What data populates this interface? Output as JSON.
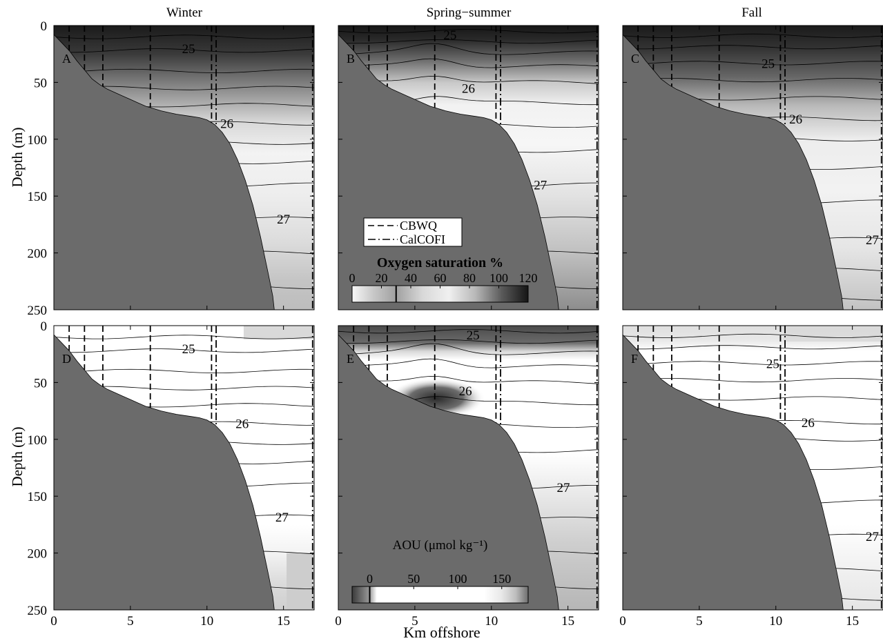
{
  "figure": {
    "column_titles": [
      "Winter",
      "Spring−summer",
      "Fall"
    ],
    "xlabel": "Km offshore",
    "ylabel": "Depth (m)"
  },
  "legend": {
    "entries": [
      {
        "label": "CBWQ",
        "style": "dashed"
      },
      {
        "label": "CalCOFI",
        "style": "dash-dot"
      }
    ]
  },
  "colorbars": {
    "oxygen": {
      "title": "Oxygen saturation %",
      "ticks": [
        "0",
        "20",
        "40",
        "60",
        "80",
        "100",
        "120"
      ],
      "range": [
        0,
        120
      ],
      "marker": 30
    },
    "aou": {
      "title": "AOU (μmol kg⁻¹)",
      "ticks": [
        "0",
        "50",
        "100",
        "150"
      ],
      "range": [
        -20,
        180
      ],
      "marker": 0
    }
  },
  "colors": {
    "seafloor": "#6b6b6b",
    "background": "#ffffff",
    "lines": "#000000"
  },
  "chart_data": [
    {
      "type": "heatmap",
      "panel": "A",
      "column": "Winter",
      "variable": "Oxygen saturation %",
      "xlim": [
        0,
        17
      ],
      "ylim": [
        250,
        0
      ],
      "xticks": [
        0,
        5,
        10,
        15
      ],
      "yticks": [
        0,
        50,
        100,
        150,
        200,
        250
      ],
      "cbwq_stations_km": [
        1.0,
        2.0,
        3.2,
        6.3,
        10.3
      ],
      "calcofi_stations_km": [
        10.6,
        16.9
      ],
      "isopycnal_labels": [
        {
          "value": "25",
          "x": 8.8,
          "depth": 20
        },
        {
          "value": "26",
          "x": 11.3,
          "depth": 86
        },
        {
          "value": "27",
          "x": 15.0,
          "depth": 170
        }
      ],
      "isopycnal_depths": [
        10,
        22,
        40,
        55,
        70,
        86,
        103,
        120,
        140,
        170,
        200,
        230
      ]
    },
    {
      "type": "heatmap",
      "panel": "B",
      "column": "Spring−summer",
      "variable": "Oxygen saturation %",
      "xlim": [
        0,
        17
      ],
      "ylim": [
        250,
        0
      ],
      "xticks": [
        0,
        5,
        10,
        15
      ],
      "yticks": [
        0,
        50,
        100,
        150,
        200,
        250
      ],
      "cbwq_stations_km": [
        1.0,
        2.0,
        3.2,
        6.3,
        10.3
      ],
      "calcofi_stations_km": [
        10.6,
        16.9
      ],
      "isopycnal_labels": [
        {
          "value": "25",
          "x": 7.3,
          "depth": 8
        },
        {
          "value": "26",
          "x": 8.5,
          "depth": 55
        },
        {
          "value": "27",
          "x": 13.2,
          "depth": 140
        }
      ],
      "isopycnal_depths": [
        5,
        14,
        24,
        36,
        50,
        68,
        88,
        110,
        140,
        170,
        200,
        230
      ]
    },
    {
      "type": "heatmap",
      "panel": "C",
      "column": "Fall",
      "variable": "Oxygen saturation %",
      "xlim": [
        0,
        17
      ],
      "ylim": [
        250,
        0
      ],
      "xticks": [
        0,
        5,
        10,
        15
      ],
      "yticks": [
        0,
        50,
        100,
        150,
        200,
        250
      ],
      "cbwq_stations_km": [
        1.0,
        2.0,
        3.2,
        6.3,
        10.3
      ],
      "calcofi_stations_km": [
        10.6,
        16.9
      ],
      "isopycnal_labels": [
        {
          "value": "25",
          "x": 9.5,
          "depth": 33
        },
        {
          "value": "26",
          "x": 11.3,
          "depth": 82
        },
        {
          "value": "27",
          "x": 16.3,
          "depth": 188
        }
      ],
      "isopycnal_depths": [
        9,
        19,
        33,
        48,
        64,
        82,
        100,
        125,
        155,
        188,
        215,
        240
      ]
    },
    {
      "type": "heatmap",
      "panel": "D",
      "column": "Winter",
      "variable": "AOU (μmol kg⁻¹)",
      "xlim": [
        0,
        17
      ],
      "ylim": [
        250,
        0
      ],
      "xticks": [
        0,
        5,
        10,
        15
      ],
      "yticks": [
        0,
        50,
        100,
        150,
        200,
        250
      ],
      "cbwq_stations_km": [
        1.0,
        2.0,
        3.2,
        6.3,
        10.3
      ],
      "calcofi_stations_km": [
        10.6,
        16.9
      ],
      "isopycnal_labels": [
        {
          "value": "25",
          "x": 8.8,
          "depth": 20
        },
        {
          "value": "26",
          "x": 12.3,
          "depth": 86
        },
        {
          "value": "27",
          "x": 14.9,
          "depth": 168
        }
      ],
      "isopycnal_depths": [
        10,
        22,
        40,
        55,
        70,
        86,
        103,
        120,
        140,
        168,
        200,
        230
      ]
    },
    {
      "type": "heatmap",
      "panel": "E",
      "column": "Spring−summer",
      "variable": "AOU (μmol kg⁻¹)",
      "xlim": [
        0,
        17
      ],
      "ylim": [
        250,
        0
      ],
      "xticks": [
        0,
        5,
        10,
        15
      ],
      "yticks": [
        0,
        50,
        100,
        150,
        200,
        250
      ],
      "cbwq_stations_km": [
        1.0,
        2.0,
        3.2,
        6.3,
        10.3
      ],
      "calcofi_stations_km": [
        10.6,
        16.9
      ],
      "isopycnal_labels": [
        {
          "value": "25",
          "x": 8.8,
          "depth": 8
        },
        {
          "value": "26",
          "x": 8.3,
          "depth": 57
        },
        {
          "value": "27",
          "x": 14.7,
          "depth": 142
        }
      ],
      "isopycnal_depths": [
        5,
        14,
        24,
        36,
        50,
        68,
        88,
        110,
        142,
        170,
        200,
        230
      ]
    },
    {
      "type": "heatmap",
      "panel": "F",
      "column": "Fall",
      "variable": "AOU (μmol kg⁻¹)",
      "xlim": [
        0,
        17
      ],
      "ylim": [
        250,
        0
      ],
      "xticks": [
        0,
        5,
        10,
        15
      ],
      "yticks": [
        0,
        50,
        100,
        150,
        200,
        250
      ],
      "cbwq_stations_km": [
        1.0,
        2.0,
        3.2,
        6.3,
        10.3
      ],
      "calcofi_stations_km": [
        10.6,
        16.9
      ],
      "isopycnal_labels": [
        {
          "value": "25",
          "x": 9.8,
          "depth": 33
        },
        {
          "value": "26",
          "x": 12.1,
          "depth": 85
        },
        {
          "value": "27",
          "x": 16.3,
          "depth": 185
        }
      ],
      "isopycnal_depths": [
        9,
        19,
        33,
        48,
        64,
        85,
        100,
        125,
        155,
        185,
        215,
        240
      ]
    }
  ]
}
